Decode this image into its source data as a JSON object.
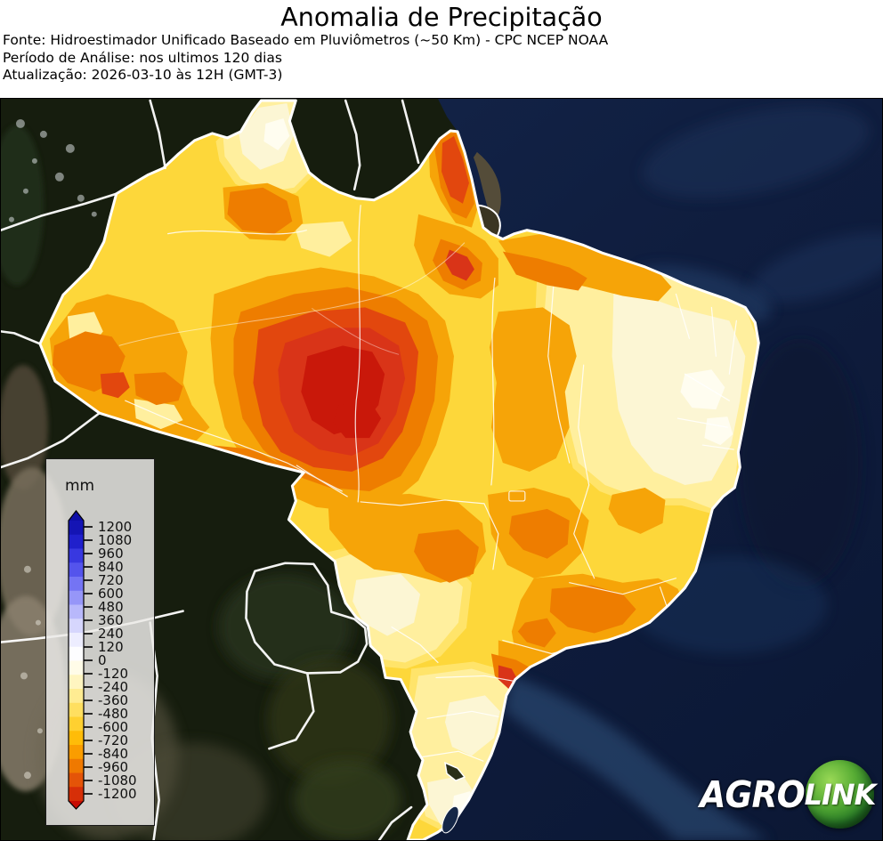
{
  "header": {
    "title": "Anomalia de Precipitação",
    "source": "Fonte: Hidroestimador Unificado Baseado em Pluviômetros (~50 Km) - CPC NCEP NOAA",
    "period": "Período de Análise: nos ultimos 120 dias",
    "updated": "Atualização: 2026-03-10 às 12H (GMT-3)"
  },
  "legend": {
    "unit": "mm",
    "max": 1200,
    "min": -1200,
    "step": 120,
    "tick_labels": [
      "1200",
      "1080",
      "960",
      "840",
      "720",
      "600",
      "480",
      "360",
      "240",
      "120",
      "0",
      "-120",
      "-240",
      "-360",
      "-480",
      "-600",
      "-720",
      "-840",
      "-960",
      "-1080",
      "-1200"
    ],
    "band_colors_top_to_bottom": [
      "#1414b4",
      "#2020cc",
      "#3838e0",
      "#5454ec",
      "#7474f4",
      "#9696f8",
      "#b8b8fb",
      "#d6d6fd",
      "#ededff",
      "#fdfdff",
      "#fffce8",
      "#fff5c0",
      "#ffec92",
      "#ffdf60",
      "#ffd030",
      "#ffbc08",
      "#fa9d00",
      "#ef7900",
      "#e45408",
      "#d62f08"
    ],
    "arrow_top_color": "#0d0da6",
    "arrow_bottom_color": "#c70d04"
  },
  "map": {
    "region": "Brazil",
    "style": "precipitation anomaly filled contours over satellite basemap",
    "anomaly_colors": {
      "base_yellow": "#fdd73a",
      "light_yellow": "#ffe46a",
      "pale_yellow": "#ffef9e",
      "cream": "#fcf6d4",
      "near_white": "#fffdf0",
      "orange": "#f6a408",
      "deep_orange": "#ee7d00",
      "red_orange": "#e2470e",
      "red": "#d93418",
      "dark_red": "#c9180a"
    },
    "ocean_color": "#101e40",
    "land_color": "#161d0e",
    "border_color": "#ffffff"
  },
  "logo": {
    "text_primary": "AGRO",
    "text_secondary": "LINK",
    "ball_color_light": "#9ad956",
    "ball_color_dark": "#0f4c16",
    "text_color": "#ffffff"
  }
}
